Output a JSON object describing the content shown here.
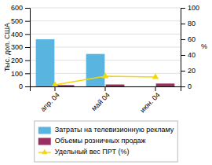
{
  "chart_data": {
    "type": "bar",
    "categories": [
      "апр. 04",
      "май 04",
      "июн. 04"
    ],
    "series": [
      {
        "name": "Затраты на телевизионную рекламу",
        "color": "#5ab4e0",
        "values": [
          360,
          248,
          0
        ]
      },
      {
        "name": "Объемы розничных продаж",
        "color": "#9b3060",
        "values": [
          10,
          15,
          22
        ]
      },
      {
        "name": "Удельный вес ПРТ (%)",
        "color": "#f5d800",
        "values": [
          2,
          13,
          12
        ],
        "type": "line",
        "marker": "triangle",
        "axis": "y2"
      }
    ],
    "y_label": "Тыс. дол. США",
    "y2_label": "%",
    "ylim": [
      0,
      600
    ],
    "yticks": [
      0,
      100,
      200,
      300,
      400,
      500,
      600
    ],
    "y2lim": [
      0,
      100
    ],
    "y2ticks": [
      0,
      20,
      40,
      60,
      80,
      100
    ],
    "grid": true,
    "legend": "bottom"
  }
}
